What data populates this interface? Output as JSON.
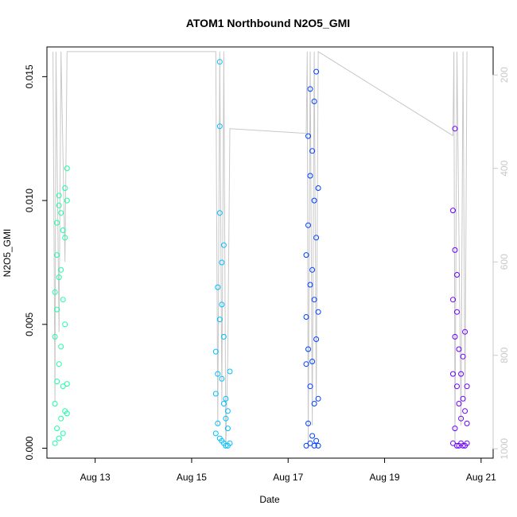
{
  "chart_data": {
    "type": "scatter",
    "title": "ATOM1 Northbound N2O5_GMI",
    "xlabel": "Date",
    "ylabel": "N2O5_GMI",
    "x_range": [
      "2016-08-12T00:00",
      "2016-08-21T06:00"
    ],
    "x_ticks": [
      {
        "x": "2016-08-13",
        "label": "Aug 13"
      },
      {
        "x": "2016-08-15",
        "label": "Aug 15"
      },
      {
        "x": "2016-08-17",
        "label": "Aug 17"
      },
      {
        "x": "2016-08-19",
        "label": "Aug 19"
      },
      {
        "x": "2016-08-21",
        "label": "Aug 21"
      }
    ],
    "ylim": [
      -0.0004,
      0.0162
    ],
    "y_ticks": [
      {
        "y": 0.0,
        "label": "0.000"
      },
      {
        "y": 0.005,
        "label": "0.005"
      },
      {
        "y": 0.01,
        "label": "0.010"
      },
      {
        "y": 0.015,
        "label": "0.015"
      }
    ],
    "y2_axis": {
      "description": "secondary right axis (altitude line, reversed)",
      "range": [
        1020,
        140
      ],
      "ticks": [
        {
          "y": 200,
          "label": "200"
        },
        {
          "y": 400,
          "label": "400"
        },
        {
          "y": 600,
          "label": "600"
        },
        {
          "y": 800,
          "label": "800"
        },
        {
          "y": 1000,
          "label": "1000"
        }
      ],
      "line_color": "#c8c8c8"
    },
    "grid": false,
    "series": [
      {
        "color": "#1affa6",
        "points": [
          {
            "x": "2016-08-12T04:00",
            "y": 0.0002
          },
          {
            "x": "2016-08-12T04:00",
            "y": 0.0018
          },
          {
            "x": "2016-08-12T04:00",
            "y": 0.0045
          },
          {
            "x": "2016-08-12T04:00",
            "y": 0.0063
          },
          {
            "x": "2016-08-12T05:00",
            "y": 0.0008
          },
          {
            "x": "2016-08-12T05:00",
            "y": 0.0027
          },
          {
            "x": "2016-08-12T05:00",
            "y": 0.0056
          },
          {
            "x": "2016-08-12T05:00",
            "y": 0.0078
          },
          {
            "x": "2016-08-12T05:00",
            "y": 0.0091
          },
          {
            "x": "2016-08-12T06:00",
            "y": 0.0004
          },
          {
            "x": "2016-08-12T06:00",
            "y": 0.0034
          },
          {
            "x": "2016-08-12T06:00",
            "y": 0.0069
          },
          {
            "x": "2016-08-12T06:00",
            "y": 0.0098
          },
          {
            "x": "2016-08-12T06:00",
            "y": 0.0102
          },
          {
            "x": "2016-08-12T07:00",
            "y": 0.0012
          },
          {
            "x": "2016-08-12T07:00",
            "y": 0.0041
          },
          {
            "x": "2016-08-12T07:00",
            "y": 0.0072
          },
          {
            "x": "2016-08-12T07:00",
            "y": 0.0095
          },
          {
            "x": "2016-08-12T08:00",
            "y": 0.0006
          },
          {
            "x": "2016-08-12T08:00",
            "y": 0.0025
          },
          {
            "x": "2016-08-12T08:00",
            "y": 0.006
          },
          {
            "x": "2016-08-12T08:00",
            "y": 0.0088
          },
          {
            "x": "2016-08-12T09:00",
            "y": 0.0015
          },
          {
            "x": "2016-08-12T09:00",
            "y": 0.005
          },
          {
            "x": "2016-08-12T09:00",
            "y": 0.0085
          },
          {
            "x": "2016-08-12T09:00",
            "y": 0.0105
          },
          {
            "x": "2016-08-12T10:00",
            "y": 0.0014
          },
          {
            "x": "2016-08-12T10:00",
            "y": 0.0026
          },
          {
            "x": "2016-08-12T10:00",
            "y": 0.01
          },
          {
            "x": "2016-08-12T10:00",
            "y": 0.0113
          }
        ]
      },
      {
        "color": "#00bfff",
        "points": [
          {
            "x": "2016-08-15T12:00",
            "y": 0.0006
          },
          {
            "x": "2016-08-15T12:00",
            "y": 0.0022
          },
          {
            "x": "2016-08-15T12:00",
            "y": 0.0039
          },
          {
            "x": "2016-08-15T13:00",
            "y": 0.001
          },
          {
            "x": "2016-08-15T13:00",
            "y": 0.003
          },
          {
            "x": "2016-08-15T13:00",
            "y": 0.0065
          },
          {
            "x": "2016-08-15T14:00",
            "y": 0.0004
          },
          {
            "x": "2016-08-15T14:00",
            "y": 0.0052
          },
          {
            "x": "2016-08-15T14:00",
            "y": 0.0095
          },
          {
            "x": "2016-08-15T14:00",
            "y": 0.013
          },
          {
            "x": "2016-08-15T14:00",
            "y": 0.0156
          },
          {
            "x": "2016-08-15T15:00",
            "y": 0.0003
          },
          {
            "x": "2016-08-15T15:00",
            "y": 0.0028
          },
          {
            "x": "2016-08-15T15:00",
            "y": 0.0058
          },
          {
            "x": "2016-08-15T15:00",
            "y": 0.0075
          },
          {
            "x": "2016-08-15T16:00",
            "y": 0.0002
          },
          {
            "x": "2016-08-15T16:00",
            "y": 0.0018
          },
          {
            "x": "2016-08-15T16:00",
            "y": 0.0045
          },
          {
            "x": "2016-08-15T16:00",
            "y": 0.0082
          },
          {
            "x": "2016-08-15T17:00",
            "y": 0.0001
          },
          {
            "x": "2016-08-15T17:00",
            "y": 0.0012
          },
          {
            "x": "2016-08-15T17:00",
            "y": 0.002
          },
          {
            "x": "2016-08-15T18:00",
            "y": 0.0001
          },
          {
            "x": "2016-08-15T18:00",
            "y": 0.0008
          },
          {
            "x": "2016-08-15T18:00",
            "y": 0.0015
          },
          {
            "x": "2016-08-15T19:00",
            "y": 0.0002
          },
          {
            "x": "2016-08-15T19:00",
            "y": 0.0031
          }
        ]
      },
      {
        "color": "#0040ff",
        "points": [
          {
            "x": "2016-08-17T09:00",
            "y": 0.0001
          },
          {
            "x": "2016-08-17T09:00",
            "y": 0.0034
          },
          {
            "x": "2016-08-17T09:00",
            "y": 0.0053
          },
          {
            "x": "2016-08-17T09:00",
            "y": 0.0078
          },
          {
            "x": "2016-08-17T10:00",
            "y": 0.001
          },
          {
            "x": "2016-08-17T10:00",
            "y": 0.004
          },
          {
            "x": "2016-08-17T10:00",
            "y": 0.009
          },
          {
            "x": "2016-08-17T10:00",
            "y": 0.0126
          },
          {
            "x": "2016-08-17T11:00",
            "y": 0.0002
          },
          {
            "x": "2016-08-17T11:00",
            "y": 0.0025
          },
          {
            "x": "2016-08-17T11:00",
            "y": 0.0066
          },
          {
            "x": "2016-08-17T11:00",
            "y": 0.011
          },
          {
            "x": "2016-08-17T11:00",
            "y": 0.0145
          },
          {
            "x": "2016-08-17T12:00",
            "y": 0.0005
          },
          {
            "x": "2016-08-17T12:00",
            "y": 0.0035
          },
          {
            "x": "2016-08-17T12:00",
            "y": 0.0072
          },
          {
            "x": "2016-08-17T12:00",
            "y": 0.012
          },
          {
            "x": "2016-08-17T13:00",
            "y": 0.0001
          },
          {
            "x": "2016-08-17T13:00",
            "y": 0.0018
          },
          {
            "x": "2016-08-17T13:00",
            "y": 0.006
          },
          {
            "x": "2016-08-17T13:00",
            "y": 0.01
          },
          {
            "x": "2016-08-17T13:00",
            "y": 0.014
          },
          {
            "x": "2016-08-17T14:00",
            "y": 0.0003
          },
          {
            "x": "2016-08-17T14:00",
            "y": 0.0044
          },
          {
            "x": "2016-08-17T14:00",
            "y": 0.0085
          },
          {
            "x": "2016-08-17T14:00",
            "y": 0.0152
          },
          {
            "x": "2016-08-17T15:00",
            "y": 0.0001
          },
          {
            "x": "2016-08-17T15:00",
            "y": 0.002
          },
          {
            "x": "2016-08-17T15:00",
            "y": 0.0055
          },
          {
            "x": "2016-08-17T15:00",
            "y": 0.0105
          }
        ]
      },
      {
        "color": "#6a00ff",
        "points": [
          {
            "x": "2016-08-20T10:00",
            "y": 0.0002
          },
          {
            "x": "2016-08-20T10:00",
            "y": 0.003
          },
          {
            "x": "2016-08-20T10:00",
            "y": 0.006
          },
          {
            "x": "2016-08-20T10:00",
            "y": 0.0096
          },
          {
            "x": "2016-08-20T11:00",
            "y": 0.0008
          },
          {
            "x": "2016-08-20T11:00",
            "y": 0.0045
          },
          {
            "x": "2016-08-20T11:00",
            "y": 0.008
          },
          {
            "x": "2016-08-20T11:00",
            "y": 0.0129
          },
          {
            "x": "2016-08-20T12:00",
            "y": 0.0001
          },
          {
            "x": "2016-08-20T12:00",
            "y": 0.0025
          },
          {
            "x": "2016-08-20T12:00",
            "y": 0.0055
          },
          {
            "x": "2016-08-20T12:00",
            "y": 0.007
          },
          {
            "x": "2016-08-20T13:00",
            "y": 0.0001
          },
          {
            "x": "2016-08-20T13:00",
            "y": 0.0018
          },
          {
            "x": "2016-08-20T13:00",
            "y": 0.004
          },
          {
            "x": "2016-08-20T14:00",
            "y": 0.0002
          },
          {
            "x": "2016-08-20T14:00",
            "y": 0.0012
          },
          {
            "x": "2016-08-20T14:00",
            "y": 0.003
          },
          {
            "x": "2016-08-20T15:00",
            "y": 0.0001
          },
          {
            "x": "2016-08-20T15:00",
            "y": 0.002
          },
          {
            "x": "2016-08-20T15:00",
            "y": 0.0037
          },
          {
            "x": "2016-08-20T16:00",
            "y": 0.0001
          },
          {
            "x": "2016-08-20T16:00",
            "y": 0.0015
          },
          {
            "x": "2016-08-20T16:00",
            "y": 0.0047
          },
          {
            "x": "2016-08-20T17:00",
            "y": 0.0002
          },
          {
            "x": "2016-08-20T17:00",
            "y": 0.001
          },
          {
            "x": "2016-08-20T17:00",
            "y": 0.0025
          }
        ]
      }
    ],
    "altitude_line": [
      {
        "x": "2016-08-12T03:00",
        "y": 150
      },
      {
        "x": "2016-08-12T04:00",
        "y": 900
      },
      {
        "x": "2016-08-12T04:30",
        "y": 150
      },
      {
        "x": "2016-08-12T06:00",
        "y": 750
      },
      {
        "x": "2016-08-12T07:00",
        "y": 150
      },
      {
        "x": "2016-08-12T09:00",
        "y": 600
      },
      {
        "x": "2016-08-12T10:00",
        "y": 150
      },
      {
        "x": "2016-08-15T12:00",
        "y": 150
      },
      {
        "x": "2016-08-15T13:00",
        "y": 950
      },
      {
        "x": "2016-08-15T14:00",
        "y": 150
      },
      {
        "x": "2016-08-15T15:00",
        "y": 900
      },
      {
        "x": "2016-08-15T16:00",
        "y": 150
      },
      {
        "x": "2016-08-15T17:00",
        "y": 1000
      },
      {
        "x": "2016-08-15T18:00",
        "y": 800
      },
      {
        "x": "2016-08-15T19:00",
        "y": 315
      },
      {
        "x": "2016-08-17T09:00",
        "y": 325
      },
      {
        "x": "2016-08-17T09:30",
        "y": 150
      },
      {
        "x": "2016-08-17T10:00",
        "y": 1000
      },
      {
        "x": "2016-08-17T11:00",
        "y": 150
      },
      {
        "x": "2016-08-17T12:00",
        "y": 950
      },
      {
        "x": "2016-08-17T13:00",
        "y": 150
      },
      {
        "x": "2016-08-17T14:00",
        "y": 900
      },
      {
        "x": "2016-08-17T15:00",
        "y": 150
      },
      {
        "x": "2016-08-20T10:00",
        "y": 330
      },
      {
        "x": "2016-08-20T10:30",
        "y": 150
      },
      {
        "x": "2016-08-20T11:00",
        "y": 1000
      },
      {
        "x": "2016-08-20T12:00",
        "y": 150
      },
      {
        "x": "2016-08-20T14:00",
        "y": 950
      },
      {
        "x": "2016-08-20T15:00",
        "y": 150
      },
      {
        "x": "2016-08-20T16:00",
        "y": 900
      },
      {
        "x": "2016-08-20T17:00",
        "y": 150
      }
    ]
  }
}
